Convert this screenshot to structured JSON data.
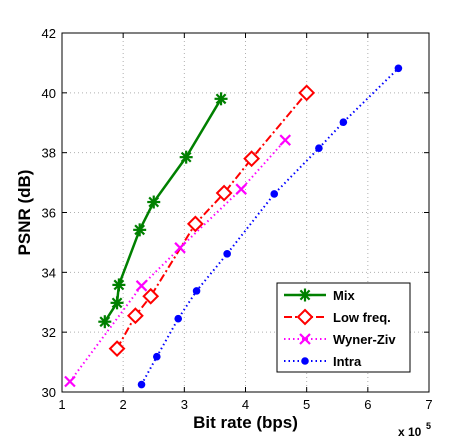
{
  "chart_data": {
    "type": "line",
    "xlabel": "Bit rate (bps)",
    "ylabel": "PSNR (dB)",
    "x_multiplier_label": "x 10",
    "x_multiplier_exp": "5",
    "xlim": [
      1,
      7
    ],
    "ylim": [
      30,
      42
    ],
    "xticks": [
      "1",
      "2",
      "3",
      "4",
      "5",
      "6",
      "7"
    ],
    "yticks": [
      "30",
      "32",
      "34",
      "36",
      "38",
      "40",
      "42"
    ],
    "grid": true,
    "legend_position": "bottom-right",
    "series": [
      {
        "name": "Mix",
        "color": "#008000",
        "line": "solid",
        "marker": "asterisk",
        "x": [
          1.7,
          1.9,
          1.93,
          2.27,
          2.5,
          3.03,
          3.6
        ],
        "y": [
          32.35,
          32.98,
          33.58,
          35.42,
          36.35,
          37.85,
          39.8
        ]
      },
      {
        "name": "Low freq.",
        "color": "#ff0000",
        "line": "dashdot",
        "marker": "diamond",
        "x": [
          1.9,
          2.2,
          2.45,
          3.18,
          3.65,
          4.1,
          5.0
        ],
        "y": [
          31.45,
          32.55,
          33.2,
          35.62,
          36.65,
          37.8,
          40.0
        ]
      },
      {
        "name": "Wyner-Ziv",
        "color": "#ff00ff",
        "line": "dotted",
        "marker": "x",
        "x": [
          1.13,
          2.3,
          2.93,
          3.93,
          4.65
        ],
        "y": [
          30.35,
          33.55,
          34.82,
          36.78,
          38.42
        ]
      },
      {
        "name": "Intra",
        "color": "#0000ff",
        "line": "dotted",
        "marker": "dot",
        "x": [
          2.3,
          2.55,
          2.9,
          3.2,
          3.7,
          4.47,
          5.2,
          5.6,
          6.5
        ],
        "y": [
          30.25,
          31.18,
          32.45,
          33.38,
          34.62,
          36.62,
          38.15,
          39.02,
          40.82
        ]
      }
    ]
  }
}
